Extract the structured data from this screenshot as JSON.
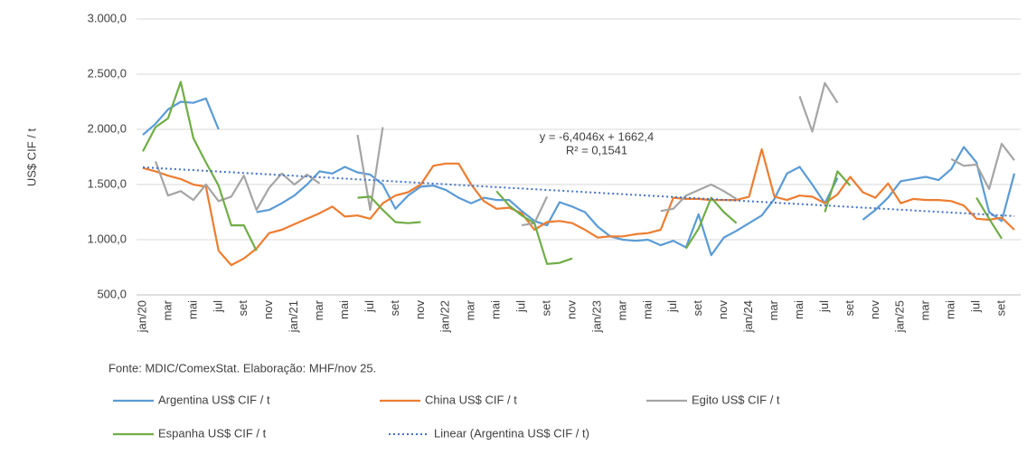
{
  "chart_data": {
    "type": "line",
    "y_label": "US$ CIF / t",
    "source": "Fonte: MDIC/ComexStat.  Elaboração: MHF/nov 25.",
    "ylim": [
      500,
      3000
    ],
    "yticks": [
      {
        "value": 500,
        "label": "500,0"
      },
      {
        "value": 1000,
        "label": "1.000,0"
      },
      {
        "value": 1500,
        "label": "1.500,0"
      },
      {
        "value": 2000,
        "label": "2.000,0"
      },
      {
        "value": 2500,
        "label": "2.500,0"
      },
      {
        "value": 3000,
        "label": "3.000,0"
      }
    ],
    "categories": [
      "jan/20",
      null,
      "mar",
      null,
      "mai",
      null,
      "jul",
      null,
      "set",
      null,
      "nov",
      null,
      "jan/21",
      null,
      "mar",
      null,
      "mai",
      null,
      "jul",
      null,
      "set",
      null,
      "nov",
      null,
      "jan/22",
      null,
      "mar",
      null,
      "mai",
      null,
      "jul",
      null,
      "set",
      null,
      "nov",
      null,
      "jan/23",
      null,
      "mar",
      null,
      "mai",
      null,
      "jul",
      null,
      "set",
      null,
      "nov",
      null,
      "jan/24",
      null,
      "mar",
      null,
      "mai",
      null,
      "jul",
      null,
      "set",
      null,
      "nov",
      null,
      "jan/25",
      null,
      "mar",
      null,
      "mai",
      null,
      "jul",
      null,
      "set",
      null
    ],
    "series": [
      {
        "name": "Argentina US$ CIF / t",
        "color": "#5b9bd5",
        "values": [
          1950,
          2050,
          2180,
          2250,
          2240,
          2280,
          2000,
          null,
          null,
          1250,
          1270,
          1330,
          1400,
          1500,
          1620,
          1600,
          1660,
          1610,
          1590,
          1500,
          1280,
          1400,
          1480,
          1490,
          1450,
          1380,
          1330,
          1380,
          1360,
          1360,
          1260,
          1170,
          1130,
          1340,
          1300,
          1250,
          1120,
          1030,
          1000,
          990,
          1000,
          950,
          990,
          930,
          1230,
          860,
          1020,
          1080,
          1150,
          1220,
          1370,
          1600,
          1660,
          1500,
          1330,
          1560,
          null,
          1180,
          1270,
          1380,
          1530,
          1550,
          1570,
          1540,
          1640,
          1840,
          1700,
          1250,
          1170,
          1600
        ]
      },
      {
        "name": "China US$ CIF / t",
        "color": "#ed7d31",
        "values": [
          1650,
          1620,
          1580,
          1550,
          1500,
          1480,
          900,
          770,
          830,
          920,
          1060,
          1090,
          1140,
          1190,
          1240,
          1300,
          1210,
          1220,
          1190,
          1330,
          1400,
          1430,
          1500,
          1670,
          1690,
          1690,
          1500,
          1350,
          1280,
          1290,
          1240,
          1090,
          1160,
          1170,
          1150,
          1090,
          1020,
          1030,
          1030,
          1050,
          1060,
          1090,
          1380,
          1370,
          1370,
          1360,
          1360,
          1360,
          1390,
          1820,
          1390,
          1360,
          1400,
          1390,
          1330,
          1410,
          1570,
          1430,
          1380,
          1510,
          1330,
          1370,
          1360,
          1360,
          1350,
          1310,
          1190,
          1180,
          1200,
          1090
        ]
      },
      {
        "name": "Egito US$ CIF / t",
        "color": "#a5a5a5",
        "values": [
          null,
          1710,
          1400,
          1440,
          1360,
          1500,
          1350,
          1390,
          1580,
          1270,
          1470,
          1600,
          1500,
          1590,
          1510,
          null,
          null,
          1950,
          1270,
          2020,
          null,
          null,
          null,
          null,
          null,
          null,
          null,
          null,
          null,
          null,
          1130,
          1150,
          1390,
          null,
          null,
          null,
          null,
          null,
          null,
          null,
          null,
          1260,
          1280,
          1400,
          1450,
          1500,
          1440,
          1370,
          null,
          null,
          null,
          null,
          2300,
          1980,
          2420,
          2240,
          null,
          null,
          null,
          null,
          null,
          null,
          null,
          null,
          1730,
          1670,
          1680,
          1460,
          1870,
          1720
        ]
      },
      {
        "name": "Espanha US$ CIF / t",
        "color": "#70ad47",
        "values": [
          1800,
          2020,
          2100,
          2430,
          1920,
          1700,
          1490,
          1130,
          1130,
          900,
          null,
          null,
          null,
          null,
          null,
          null,
          null,
          1380,
          1390,
          1270,
          1160,
          1150,
          1160,
          null,
          null,
          null,
          null,
          null,
          1440,
          1310,
          1220,
          1150,
          780,
          790,
          830,
          null,
          null,
          null,
          null,
          null,
          null,
          null,
          null,
          920,
          1100,
          1380,
          1250,
          1150,
          null,
          null,
          null,
          null,
          null,
          null,
          1250,
          1620,
          1490,
          null,
          null,
          null,
          null,
          null,
          null,
          null,
          null,
          null,
          1380,
          1190,
          1010,
          null
        ]
      }
    ],
    "trendline": {
      "name": "Linear (Argentina US$ CIF / t)",
      "color": "#4472c4",
      "start": 1656.0,
      "end": 1214.1,
      "equation": "y = -6,4046x + 1662,4",
      "r2": "R² = 0,1541"
    }
  }
}
